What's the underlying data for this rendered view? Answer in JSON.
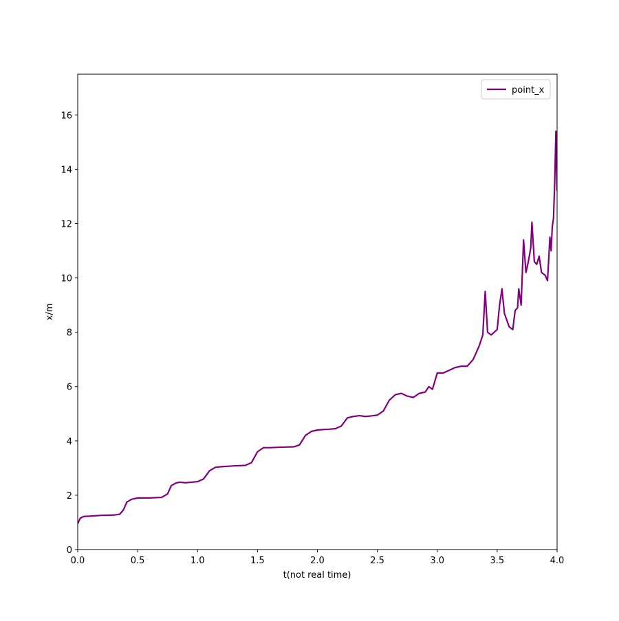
{
  "chart_data": {
    "type": "line",
    "xlabel": "t(not real time)",
    "ylabel": "x/m",
    "x": [
      0,
      0.02,
      0.05,
      0.1,
      0.2,
      0.3,
      0.35,
      0.38,
      0.41,
      0.45,
      0.5,
      0.6,
      0.7,
      0.75,
      0.78,
      0.82,
      0.85,
      0.9,
      0.95,
      1.0,
      1.05,
      1.1,
      1.15,
      1.2,
      1.3,
      1.4,
      1.45,
      1.5,
      1.55,
      1.6,
      1.7,
      1.8,
      1.85,
      1.9,
      1.95,
      2.0,
      2.05,
      2.1,
      2.15,
      2.2,
      2.25,
      2.3,
      2.35,
      2.4,
      2.45,
      2.5,
      2.55,
      2.6,
      2.65,
      2.7,
      2.75,
      2.8,
      2.85,
      2.9,
      2.93,
      2.96,
      2.98,
      3.0,
      3.05,
      3.1,
      3.15,
      3.2,
      3.25,
      3.3,
      3.35,
      3.38,
      3.4,
      3.42,
      3.45,
      3.5,
      3.52,
      3.54,
      3.56,
      3.6,
      3.63,
      3.65,
      3.67,
      3.68,
      3.7,
      3.72,
      3.74,
      3.76,
      3.78,
      3.79,
      3.81,
      3.83,
      3.85,
      3.87,
      3.9,
      3.92,
      3.94,
      3.95,
      3.96,
      3.97,
      3.98,
      3.99,
      4.0
    ],
    "series": [
      {
        "name": "point_x",
        "color": "#800080",
        "values": [
          0.95,
          1.15,
          1.22,
          1.23,
          1.26,
          1.27,
          1.3,
          1.45,
          1.75,
          1.85,
          1.9,
          1.9,
          1.92,
          2.05,
          2.35,
          2.45,
          2.48,
          2.46,
          2.48,
          2.5,
          2.6,
          2.9,
          3.03,
          3.05,
          3.08,
          3.1,
          3.2,
          3.6,
          3.75,
          3.75,
          3.77,
          3.78,
          3.85,
          4.2,
          4.35,
          4.4,
          4.42,
          4.43,
          4.45,
          4.55,
          4.85,
          4.9,
          4.93,
          4.9,
          4.92,
          4.95,
          5.1,
          5.5,
          5.7,
          5.75,
          5.65,
          5.6,
          5.75,
          5.8,
          6.0,
          5.9,
          6.2,
          6.5,
          6.5,
          6.6,
          6.7,
          6.75,
          6.75,
          7.0,
          7.5,
          7.9,
          9.5,
          8.0,
          7.9,
          8.1,
          9.0,
          9.6,
          8.7,
          8.2,
          8.1,
          8.8,
          8.9,
          9.6,
          9.0,
          11.4,
          10.2,
          10.6,
          11.1,
          12.05,
          10.6,
          10.5,
          10.8,
          10.2,
          10.1,
          9.9,
          11.5,
          11.0,
          11.9,
          12.2,
          13.5,
          15.4,
          13.2
        ]
      }
    ],
    "xlim": [
      0,
      4
    ],
    "ylim": [
      0,
      17.5
    ],
    "xticks": [
      {
        "value": 0,
        "label": "0.0"
      },
      0.5,
      {
        "value": 1,
        "label": "1.0"
      },
      1.5,
      {
        "value": 2,
        "label": "2.0"
      },
      2.5,
      {
        "value": 3,
        "label": "3.0"
      },
      3.5,
      {
        "value": 4,
        "label": "4.0"
      }
    ],
    "yticks": [
      0,
      2,
      4,
      6,
      8,
      10,
      12,
      14,
      16
    ],
    "legend": "upper right",
    "grid": false
  }
}
